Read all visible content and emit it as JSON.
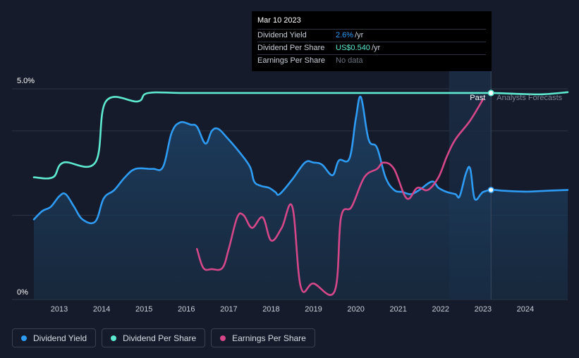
{
  "tooltip": {
    "date": "Mar 10 2023",
    "rows": [
      {
        "label": "Dividend Yield",
        "value": "2.6%",
        "unit": " /yr",
        "color": "#2e9cf4"
      },
      {
        "label": "Dividend Per Share",
        "value": "US$0.540",
        "unit": " /yr",
        "color": "#5eead0"
      },
      {
        "label": "Earnings Per Share",
        "value": "No data",
        "unit": "",
        "color": "#6b7280"
      }
    ]
  },
  "labels": {
    "past": "Past",
    "forecast": "Analysts Forecasts"
  },
  "legend": [
    {
      "label": "Dividend Yield",
      "color": "#2e9cf4"
    },
    {
      "label": "Dividend Per Share",
      "color": "#5eead0"
    },
    {
      "label": "Earnings Per Share",
      "color": "#d6478a"
    }
  ],
  "chart_data": {
    "type": "line",
    "y_tick_labels": [
      "5.0%",
      "0%"
    ],
    "ylim": [
      0,
      5.0
    ],
    "xlim": [
      2012.4,
      2025.0
    ],
    "x_tick_labels": [
      "2013",
      "2014",
      "2015",
      "2016",
      "2017",
      "2018",
      "2019",
      "2020",
      "2021",
      "2022",
      "2023",
      "2024"
    ],
    "forecast_start": 2022.2,
    "tooltip_x": 2023.19,
    "grid": true,
    "legend_position": "bottom-left",
    "series": [
      {
        "name": "Dividend Yield",
        "color": "#2e9cf4",
        "filled": true,
        "points": [
          [
            2012.4,
            1.9
          ],
          [
            2012.6,
            2.1
          ],
          [
            2012.8,
            2.2
          ],
          [
            2013.0,
            2.45
          ],
          [
            2013.15,
            2.5
          ],
          [
            2013.35,
            2.2
          ],
          [
            2013.55,
            1.9
          ],
          [
            2013.85,
            1.85
          ],
          [
            2014.05,
            2.4
          ],
          [
            2014.3,
            2.6
          ],
          [
            2014.55,
            2.9
          ],
          [
            2014.8,
            3.1
          ],
          [
            2015.2,
            3.1
          ],
          [
            2015.45,
            3.15
          ],
          [
            2015.65,
            3.95
          ],
          [
            2015.85,
            4.2
          ],
          [
            2016.1,
            4.15
          ],
          [
            2016.25,
            4.1
          ],
          [
            2016.45,
            3.7
          ],
          [
            2016.6,
            4.0
          ],
          [
            2016.75,
            4.05
          ],
          [
            2016.95,
            3.85
          ],
          [
            2017.25,
            3.5
          ],
          [
            2017.5,
            3.15
          ],
          [
            2017.6,
            2.8
          ],
          [
            2017.75,
            2.7
          ],
          [
            2017.95,
            2.65
          ],
          [
            2018.1,
            2.55
          ],
          [
            2018.2,
            2.5
          ],
          [
            2018.5,
            2.85
          ],
          [
            2018.8,
            3.25
          ],
          [
            2019.0,
            3.25
          ],
          [
            2019.2,
            3.2
          ],
          [
            2019.45,
            2.95
          ],
          [
            2019.6,
            3.3
          ],
          [
            2019.85,
            3.35
          ],
          [
            2020.0,
            4.3
          ],
          [
            2020.12,
            4.8
          ],
          [
            2020.3,
            3.8
          ],
          [
            2020.5,
            3.6
          ],
          [
            2020.7,
            2.9
          ],
          [
            2020.9,
            2.6
          ],
          [
            2021.1,
            2.55
          ],
          [
            2021.3,
            2.5
          ],
          [
            2021.5,
            2.6
          ],
          [
            2021.8,
            2.8
          ],
          [
            2021.95,
            2.65
          ],
          [
            2022.15,
            2.55
          ],
          [
            2022.35,
            2.5
          ],
          [
            2022.45,
            2.45
          ],
          [
            2022.6,
            3.0
          ],
          [
            2022.7,
            3.1
          ],
          [
            2022.8,
            2.4
          ],
          [
            2022.95,
            2.5
          ],
          [
            2023.0,
            2.55
          ],
          [
            2023.19,
            2.6
          ],
          [
            2023.5,
            2.58
          ],
          [
            2024.0,
            2.56
          ],
          [
            2024.5,
            2.58
          ],
          [
            2025.0,
            2.6
          ]
        ]
      },
      {
        "name": "Dividend Per Share",
        "color": "#5eead0",
        "filled": false,
        "points": [
          [
            2012.4,
            2.9
          ],
          [
            2012.85,
            2.9
          ],
          [
            2013.1,
            3.25
          ],
          [
            2013.85,
            3.25
          ],
          [
            2014.1,
            4.7
          ],
          [
            2014.85,
            4.7
          ],
          [
            2015.1,
            4.9
          ],
          [
            2016.0,
            4.9
          ],
          [
            2018.0,
            4.9
          ],
          [
            2020.0,
            4.9
          ],
          [
            2022.0,
            4.9
          ],
          [
            2023.19,
            4.9
          ],
          [
            2023.8,
            4.88
          ],
          [
            2024.4,
            4.87
          ],
          [
            2025.0,
            4.92
          ]
        ]
      },
      {
        "name": "Earnings Per Share",
        "color": "#d6478a",
        "filled": false,
        "points": [
          [
            2016.25,
            1.2
          ],
          [
            2016.4,
            0.75
          ],
          [
            2016.6,
            0.72
          ],
          [
            2016.85,
            0.75
          ],
          [
            2017.0,
            1.2
          ],
          [
            2017.2,
            1.95
          ],
          [
            2017.35,
            2.0
          ],
          [
            2017.55,
            1.7
          ],
          [
            2017.8,
            1.95
          ],
          [
            2018.0,
            1.4
          ],
          [
            2018.25,
            1.7
          ],
          [
            2018.5,
            2.2
          ],
          [
            2018.7,
            0.3
          ],
          [
            2019.0,
            0.38
          ],
          [
            2019.5,
            0.2
          ],
          [
            2019.65,
            1.95
          ],
          [
            2019.9,
            2.2
          ],
          [
            2020.2,
            2.9
          ],
          [
            2020.5,
            3.1
          ],
          [
            2020.65,
            3.25
          ],
          [
            2020.9,
            3.1
          ],
          [
            2021.2,
            2.4
          ],
          [
            2021.45,
            2.65
          ],
          [
            2021.7,
            2.6
          ],
          [
            2021.95,
            2.9
          ],
          [
            2022.15,
            3.4
          ],
          [
            2022.35,
            3.8
          ],
          [
            2022.7,
            4.25
          ],
          [
            2023.0,
            4.75
          ]
        ]
      }
    ]
  }
}
